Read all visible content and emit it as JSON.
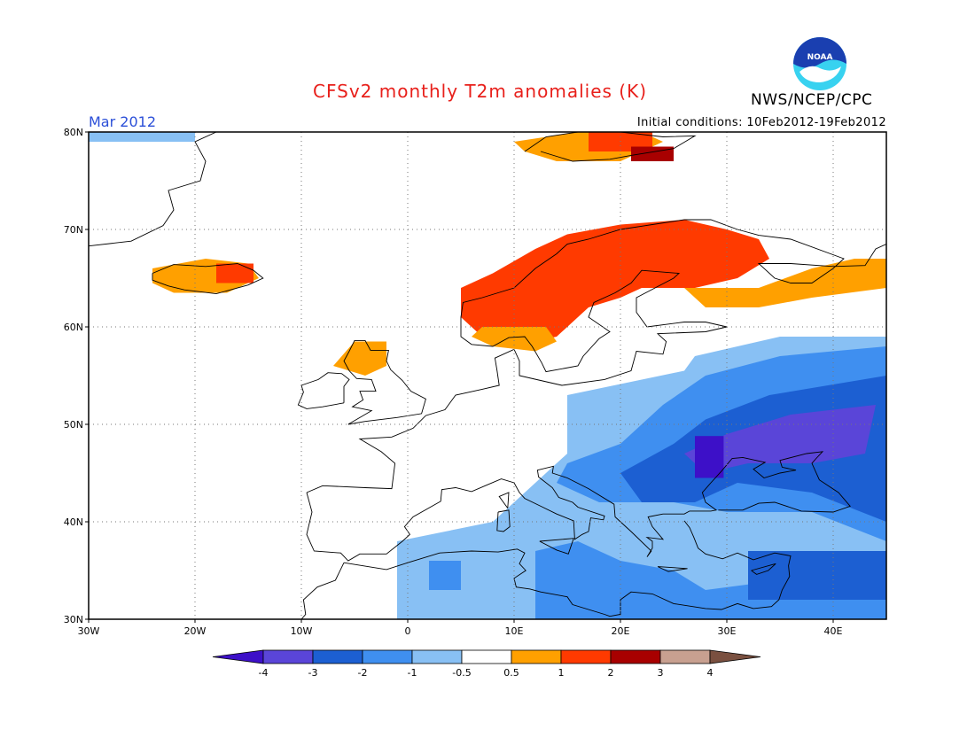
{
  "header": {
    "title": "CFSv2 monthly T2m anomalies (K)",
    "agency": "NWS/NCEP/CPC",
    "logo_text": "NOAA",
    "period": "Mar 2012",
    "initial_conditions": "Initial conditions: 10Feb2012-19Feb2012"
  },
  "map": {
    "lon_labels": [
      "30W",
      "20W",
      "10W",
      "0",
      "10E",
      "20E",
      "30E",
      "40E"
    ],
    "lat_labels": [
      "80N",
      "70N",
      "60N",
      "50N",
      "40N",
      "30N"
    ],
    "lon_range": [
      -30,
      45
    ],
    "lat_range": [
      30,
      80
    ]
  },
  "legend": {
    "labels": [
      "-4",
      "-3",
      "-2",
      "-1",
      "-0.5",
      "0.5",
      "1",
      "2",
      "3",
      "4"
    ],
    "colors": [
      "#3d10c8",
      "#5a45d8",
      "#1c5fd2",
      "#3f8ff0",
      "#88c0f4",
      "#ffffff",
      "#ffa000",
      "#ff3a00",
      "#a80000",
      "#c8a090",
      "#7a5040"
    ]
  },
  "colors": {
    "title": "#e8201b",
    "period": "#2b4fd8",
    "noaa_blue": "#1a3fb0",
    "noaa_cyan": "#38d2f0"
  }
}
